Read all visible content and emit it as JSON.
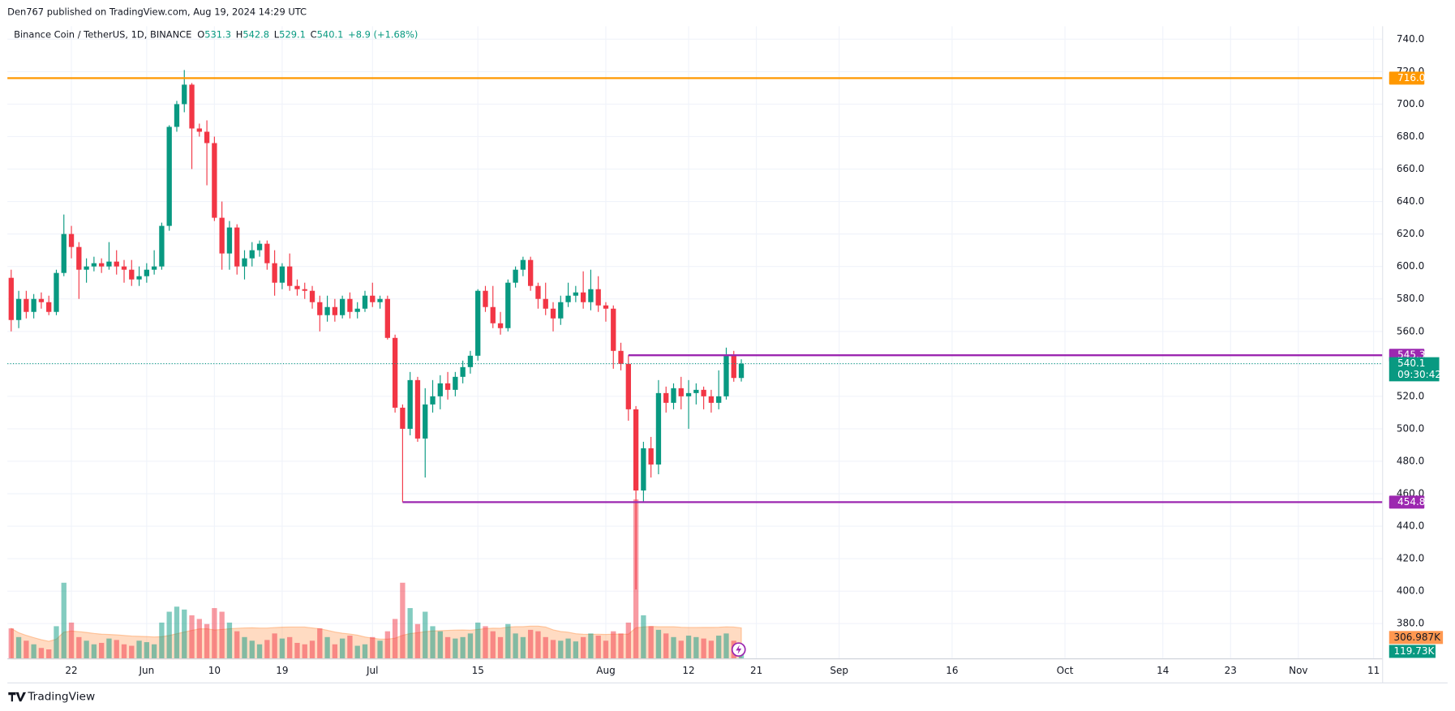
{
  "header": "Den767 published on TradingView.com, Aug 19, 2024 14:29 UTC",
  "footer": "TradingView",
  "chart_data": {
    "type": "candlestick",
    "legend": {
      "symbol": "Binance Coin / TetherUS, 1D, BINANCE",
      "fields": [
        "O",
        "H",
        "L",
        "C"
      ],
      "change": "+8.9 (+1.68%)"
    },
    "up_color": "#089981",
    "down_color": "#f23645",
    "open": [
      593,
      567,
      580,
      572,
      580,
      578,
      572,
      596,
      620,
      612,
      598,
      600,
      602,
      600,
      603,
      600,
      598,
      592,
      594,
      598,
      600,
      625,
      686,
      700,
      712,
      685,
      683,
      676,
      630,
      608,
      624,
      600,
      605,
      610,
      614,
      602,
      590,
      600,
      588,
      586,
      585,
      578,
      570,
      575,
      570,
      580,
      572,
      574,
      582,
      578,
      580,
      556,
      513,
      500,
      530,
      494,
      515,
      520,
      528,
      524,
      532,
      538,
      545,
      585,
      575,
      565,
      562,
      590,
      598,
      604,
      588,
      580,
      574,
      568,
      578,
      582,
      584,
      578,
      586,
      576,
      574,
      548,
      540,
      512,
      462,
      488,
      478,
      522,
      516,
      525,
      520,
      522,
      524,
      520,
      516,
      520,
      545,
      531.3
    ],
    "high": [
      598,
      585,
      585,
      583,
      584,
      582,
      598,
      632,
      625,
      615,
      605,
      606,
      605,
      615,
      610,
      604,
      604,
      600,
      602,
      610,
      627,
      687,
      702,
      721,
      713,
      688,
      690,
      680,
      640,
      628,
      626,
      610,
      615,
      616,
      616,
      610,
      602,
      608,
      592,
      590,
      588,
      582,
      582,
      580,
      582,
      584,
      578,
      585,
      590,
      582,
      582,
      558,
      515,
      535,
      532,
      525,
      530,
      533,
      535,
      535,
      542,
      548,
      586,
      588,
      588,
      572,
      592,
      600,
      606,
      606,
      590,
      590,
      578,
      582,
      590,
      588,
      597,
      598,
      594,
      578,
      576,
      553,
      545.3,
      514,
      492,
      495,
      530,
      526,
      528,
      532,
      530,
      528,
      526,
      524,
      536,
      550,
      548,
      542.8
    ],
    "low": [
      560,
      562,
      568,
      568,
      574,
      570,
      570,
      594,
      605,
      580,
      590,
      597,
      596,
      598,
      595,
      590,
      588,
      588,
      590,
      595,
      598,
      622,
      683,
      695,
      660,
      680,
      650,
      628,
      598,
      598,
      595,
      592,
      600,
      606,
      598,
      582,
      586,
      585,
      582,
      580,
      574,
      560,
      566,
      566,
      568,
      568,
      568,
      572,
      575,
      574,
      555,
      510,
      454.8,
      496,
      492,
      470,
      510,
      512,
      518,
      520,
      528,
      534,
      542,
      572,
      562,
      558,
      560,
      587,
      594,
      585,
      574,
      570,
      560,
      564,
      575,
      578,
      574,
      573,
      572,
      566,
      537,
      536,
      505,
      401,
      455,
      470,
      472,
      510,
      512,
      512,
      500,
      515,
      512,
      510,
      512,
      518,
      529,
      529.1
    ],
    "close": [
      567,
      580,
      572,
      580,
      578,
      572,
      596,
      620,
      612,
      598,
      600,
      602,
      600,
      603,
      600,
      598,
      592,
      594,
      598,
      600,
      625,
      686,
      700,
      712,
      685,
      683,
      676,
      630,
      608,
      624,
      600,
      605,
      610,
      614,
      602,
      590,
      600,
      588,
      586,
      585,
      578,
      570,
      575,
      570,
      580,
      572,
      574,
      582,
      578,
      580,
      556,
      513,
      500,
      530,
      494,
      515,
      520,
      528,
      524,
      532,
      538,
      545,
      585,
      575,
      565,
      562,
      590,
      598,
      604,
      588,
      580,
      574,
      568,
      578,
      582,
      584,
      578,
      586,
      576,
      574,
      548,
      540,
      512,
      462,
      488,
      478,
      522,
      516,
      525,
      520,
      522,
      524,
      520,
      516,
      520,
      545,
      531.3,
      540.1
    ],
    "volume": [
      420,
      300,
      250,
      200,
      150,
      130,
      450,
      1050,
      500,
      300,
      250,
      200,
      220,
      280,
      260,
      200,
      180,
      250,
      230,
      200,
      500,
      650,
      720,
      680,
      600,
      550,
      480,
      700,
      650,
      500,
      380,
      300,
      250,
      200,
      260,
      350,
      280,
      300,
      220,
      200,
      250,
      420,
      300,
      200,
      280,
      320,
      180,
      200,
      300,
      250,
      380,
      550,
      1050,
      700,
      480,
      650,
      450,
      380,
      300,
      280,
      300,
      350,
      500,
      450,
      380,
      300,
      480,
      350,
      300,
      400,
      380,
      300,
      260,
      250,
      280,
      240,
      300,
      350,
      320,
      250,
      380,
      350,
      500,
      2200,
      600,
      450,
      400,
      350,
      300,
      250,
      320,
      300,
      280,
      250,
      320,
      350,
      250,
      119.73
    ],
    "volume_last_label": "119.73K",
    "volume_ma": {
      "value": 306.987,
      "label": "306.987K"
    },
    "volume_ylim": [
      0,
      8730
    ],
    "countdown": "09:30:42",
    "levels": [
      {
        "value": 716,
        "label": "716.0",
        "color": "#ff9800",
        "start": -0.5
      },
      {
        "value": 545.3,
        "label": "545.3",
        "color": "#9c27b0",
        "start": 82
      },
      {
        "value": 454.8,
        "label": "454.8",
        "color": "#9c27b0",
        "start": 52
      }
    ],
    "xlim": [
      -0.5,
      182.2
    ],
    "ylim": [
      358.3,
      748
    ],
    "yticks": [
      {
        "value": 740,
        "label": "740.0"
      },
      {
        "value": 720,
        "label": "720.0"
      },
      {
        "value": 700,
        "label": "700.0"
      },
      {
        "value": 680,
        "label": "680.0"
      },
      {
        "value": 660,
        "label": "660.0"
      },
      {
        "value": 640,
        "label": "640.0"
      },
      {
        "value": 620,
        "label": "620.0"
      },
      {
        "value": 600,
        "label": "600.0"
      },
      {
        "value": 580,
        "label": "580.0"
      },
      {
        "value": 560,
        "label": "560.0"
      },
      {
        "value": 540,
        "label": "540.0"
      },
      {
        "value": 520,
        "label": "520.0"
      },
      {
        "value": 500,
        "label": "500.0"
      },
      {
        "value": 480,
        "label": "480.0"
      },
      {
        "value": 460,
        "label": "460.0"
      },
      {
        "value": 440,
        "label": "440.0"
      },
      {
        "value": 420,
        "label": "420.0"
      },
      {
        "value": 400,
        "label": "400.0"
      },
      {
        "value": 380,
        "label": "380.0"
      }
    ],
    "xticks": [
      {
        "value": 8,
        "label": "22"
      },
      {
        "value": 18,
        "label": "Jun"
      },
      {
        "value": 27,
        "label": "10"
      },
      {
        "value": 36,
        "label": "19"
      },
      {
        "value": 48,
        "label": "Jul"
      },
      {
        "value": 62,
        "label": "15"
      },
      {
        "value": 79,
        "label": "Aug"
      },
      {
        "value": 90,
        "label": "12"
      },
      {
        "value": 99,
        "label": "21"
      },
      {
        "value": 110,
        "label": "Sep"
      },
      {
        "value": 125,
        "label": "16"
      },
      {
        "value": 140,
        "label": "Oct"
      },
      {
        "value": 153,
        "label": "14"
      },
      {
        "value": 162,
        "label": "23"
      },
      {
        "value": 171,
        "label": "Nov"
      },
      {
        "value": 181,
        "label": "11"
      }
    ],
    "grid": true
  }
}
